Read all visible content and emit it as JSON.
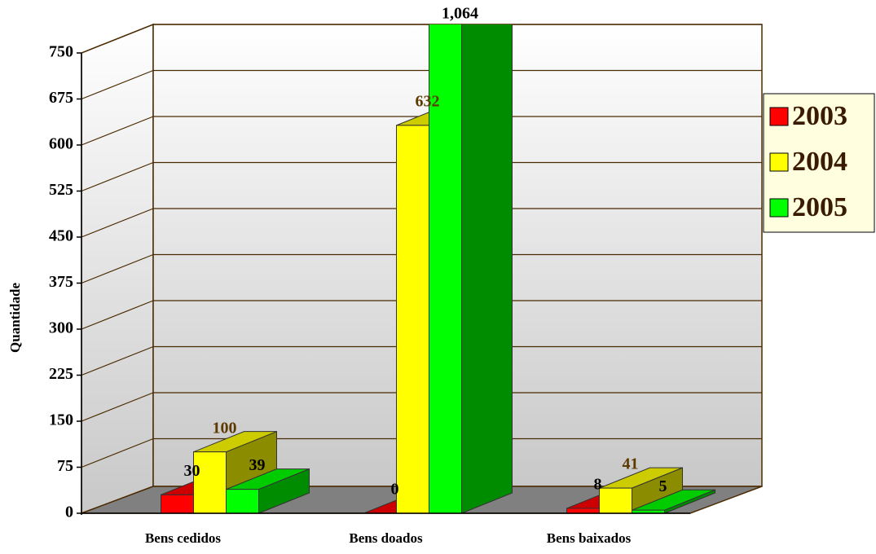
{
  "chart_data": {
    "type": "bar3d",
    "y_axis_label": "Quantidade",
    "categories": [
      "Bens cedidos",
      "Bens doados",
      "Bens baixados"
    ],
    "series": [
      {
        "name": "2003",
        "color": "#ff0000",
        "values": [
          30,
          0,
          8
        ],
        "value_labels": [
          "30",
          "0",
          "8"
        ]
      },
      {
        "name": "2004",
        "color": "#ffff00",
        "values": [
          100,
          632,
          41
        ],
        "value_labels": [
          "100",
          "632",
          "41"
        ]
      },
      {
        "name": "2005",
        "color": "#00ff00",
        "values": [
          39,
          1064,
          5
        ],
        "value_labels": [
          "39",
          "1,064",
          "5"
        ]
      }
    ],
    "ylim": [
      0,
      750
    ],
    "yticks": [
      0,
      75,
      150,
      225,
      300,
      375,
      450,
      525,
      600,
      675,
      750
    ],
    "grid": true,
    "legend": "right"
  }
}
